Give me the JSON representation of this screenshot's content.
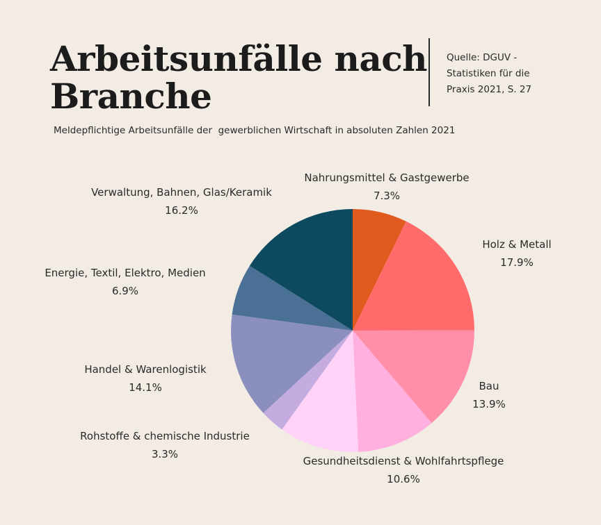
{
  "title": {
    "line1": "Arbeitsunfälle nach",
    "line2": "Branche"
  },
  "source": {
    "line1": "Quelle: DGUV -",
    "line2": "Statistiken für die",
    "line3": "Praxis 2021, S. 27"
  },
  "subtitle": "Meldepflichtige Arbeitsunfälle der  gewerblichen Wirtschaft in absoluten Zahlen 2021",
  "chart_data": {
    "type": "pie",
    "title": "Arbeitsunfälle nach Branche",
    "subtitle": "Meldepflichtige Arbeitsunfälle der  gewerblichen Wirtschaft in absoluten Zahlen 2021",
    "slices": [
      {
        "label": "Nahrungsmittel & Gastgewerbe",
        "value": 7.3,
        "value_label": "7.3%",
        "color": "#e05a1e"
      },
      {
        "label": "Holz & Metall",
        "value": 17.9,
        "value_label": "17.9%",
        "color": "#ff6b6b"
      },
      {
        "label": "Bau",
        "value": 13.9,
        "value_label": "13.9%",
        "color": "#ff8fa8"
      },
      {
        "label": "Gesundheitsdienst & Wohlfahrtspflege",
        "value": 10.6,
        "value_label": "10.6%",
        "color": "#ffb0de"
      },
      {
        "label": "",
        "value": 10.7,
        "value_label": "",
        "color": "#ffd2f8"
      },
      {
        "label": "Rohstoffe & chemische Industrie",
        "value": 3.3,
        "value_label": "3.3%",
        "color": "#c4abe0"
      },
      {
        "label": "Handel & Warenlogistik",
        "value": 14.1,
        "value_label": "14.1%",
        "color": "#8b8fbe"
      },
      {
        "label": "Energie, Textil, Elektro, Medien",
        "value": 6.9,
        "value_label": "6.9%",
        "color": "#4a7096"
      },
      {
        "label": "Verwaltung, Bahnen, Glas/Keramik",
        "value": 16.2,
        "value_label": "16.2%",
        "color": "#0d4a5f"
      }
    ],
    "start_angle": "12 o'clock, clockwise",
    "legend": "none (direct labels)"
  }
}
